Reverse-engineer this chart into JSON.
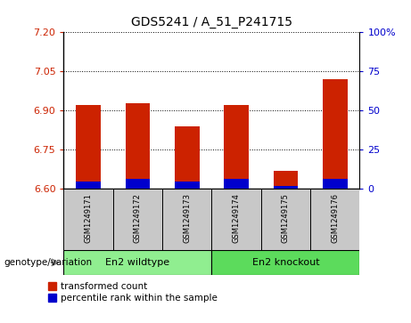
{
  "title": "GDS5241 / A_51_P241715",
  "samples": [
    "GSM1249171",
    "GSM1249172",
    "GSM1249173",
    "GSM1249174",
    "GSM1249175",
    "GSM1249176"
  ],
  "red_values": [
    6.92,
    6.93,
    6.84,
    6.92,
    6.67,
    7.02
  ],
  "blue_values": [
    6.63,
    6.64,
    6.63,
    6.64,
    6.61,
    6.64
  ],
  "baseline": 6.6,
  "ylim_left": [
    6.6,
    7.2
  ],
  "ylim_right": [
    0,
    100
  ],
  "yticks_left": [
    6.6,
    6.75,
    6.9,
    7.05,
    7.2
  ],
  "yticks_right": [
    0,
    25,
    50,
    75,
    100
  ],
  "groups": [
    {
      "label": "En2 wildtype",
      "span": [
        0,
        3
      ],
      "color": "#90EE90"
    },
    {
      "label": "En2 knockout",
      "span": [
        3,
        6
      ],
      "color": "#5CDB5C"
    }
  ],
  "group_label_prefix": "genotype/variation",
  "legend_red": "transformed count",
  "legend_blue": "percentile rank within the sample",
  "bar_width": 0.5,
  "bg_color": "#c8c8c8",
  "plot_bg_color": "#ffffff",
  "left_ytick_color": "#cc2200",
  "right_ytick_color": "#0000cc",
  "grid_color": "#000000",
  "bar_red_color": "#cc2200",
  "bar_blue_color": "#0000cc"
}
